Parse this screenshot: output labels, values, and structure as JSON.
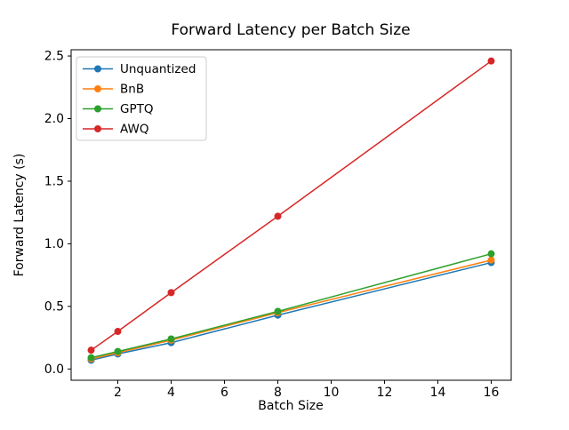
{
  "chart_data": {
    "type": "line",
    "title": "Forward Latency per Batch Size",
    "xlabel": "Batch Size",
    "ylabel": "Forward Latency (s)",
    "x": [
      1,
      2,
      4,
      8,
      16
    ],
    "series": [
      {
        "name": "Unquantized",
        "color": "#1f77b4",
        "values": [
          0.07,
          0.12,
          0.21,
          0.43,
          0.85
        ]
      },
      {
        "name": "BnB",
        "color": "#ff7f0e",
        "values": [
          0.08,
          0.13,
          0.23,
          0.45,
          0.87
        ]
      },
      {
        "name": "GPTQ",
        "color": "#2ca02c",
        "values": [
          0.09,
          0.14,
          0.24,
          0.46,
          0.92
        ]
      },
      {
        "name": "AWQ",
        "color": "#d62728",
        "values": [
          0.15,
          0.3,
          0.61,
          1.22,
          2.46
        ]
      }
    ],
    "marker": "o",
    "xticks": [
      2,
      4,
      6,
      8,
      10,
      12,
      14,
      16
    ],
    "yticks": [
      0.0,
      0.5,
      1.0,
      1.5,
      2.0,
      2.5
    ],
    "xlim": [
      0.25,
      16.75
    ],
    "ylim": [
      -0.09,
      2.55
    ],
    "grid": false,
    "legend_position": "upper left",
    "axis_color": "#000000",
    "background_color": "#ffffff"
  }
}
